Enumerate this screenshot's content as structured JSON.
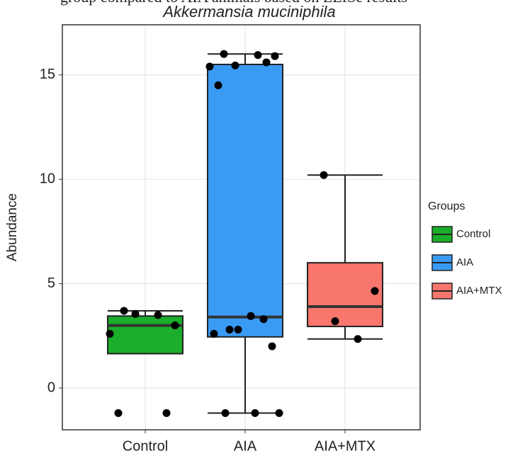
{
  "caption": "group compared to AIA animals based on LEfSe results",
  "chart_data": {
    "type": "box",
    "title": "Akkermansia muciniphila",
    "y_label": "Abundance",
    "legend_title": "Groups",
    "categories": [
      "Control",
      "AIA",
      "AIA+MTX"
    ],
    "ylim": [
      -2.0,
      17.4
    ],
    "yticks": [
      0,
      5,
      10,
      15
    ],
    "grid": true,
    "series": [
      {
        "name": "Control",
        "color": "#1aae2a",
        "q1": 1.65,
        "median": 3.0,
        "q3": 3.45,
        "whisker_low": 1.65,
        "whisker_high": 3.7,
        "points": [
          3.7,
          3.0,
          3.55,
          3.5,
          2.6,
          -1.2,
          -1.2
        ]
      },
      {
        "name": "AIA",
        "color": "#3a9bf5",
        "q1": 2.45,
        "median": 3.4,
        "q3": 15.5,
        "whisker_low": -1.2,
        "whisker_high": 16.0,
        "points": [
          16.0,
          15.9,
          15.45,
          15.95,
          15.4,
          15.6,
          14.5,
          3.45,
          2.8,
          3.3,
          2.8,
          2.0,
          2.6,
          -1.2,
          -1.2,
          -1.2
        ]
      },
      {
        "name": "AIA+MTX",
        "color": "#f8766d",
        "q1": 2.95,
        "median": 3.9,
        "q3": 6.0,
        "whisker_low": 2.35,
        "whisker_high": 10.2,
        "points": [
          10.2,
          4.65,
          3.2,
          2.35
        ]
      }
    ]
  }
}
